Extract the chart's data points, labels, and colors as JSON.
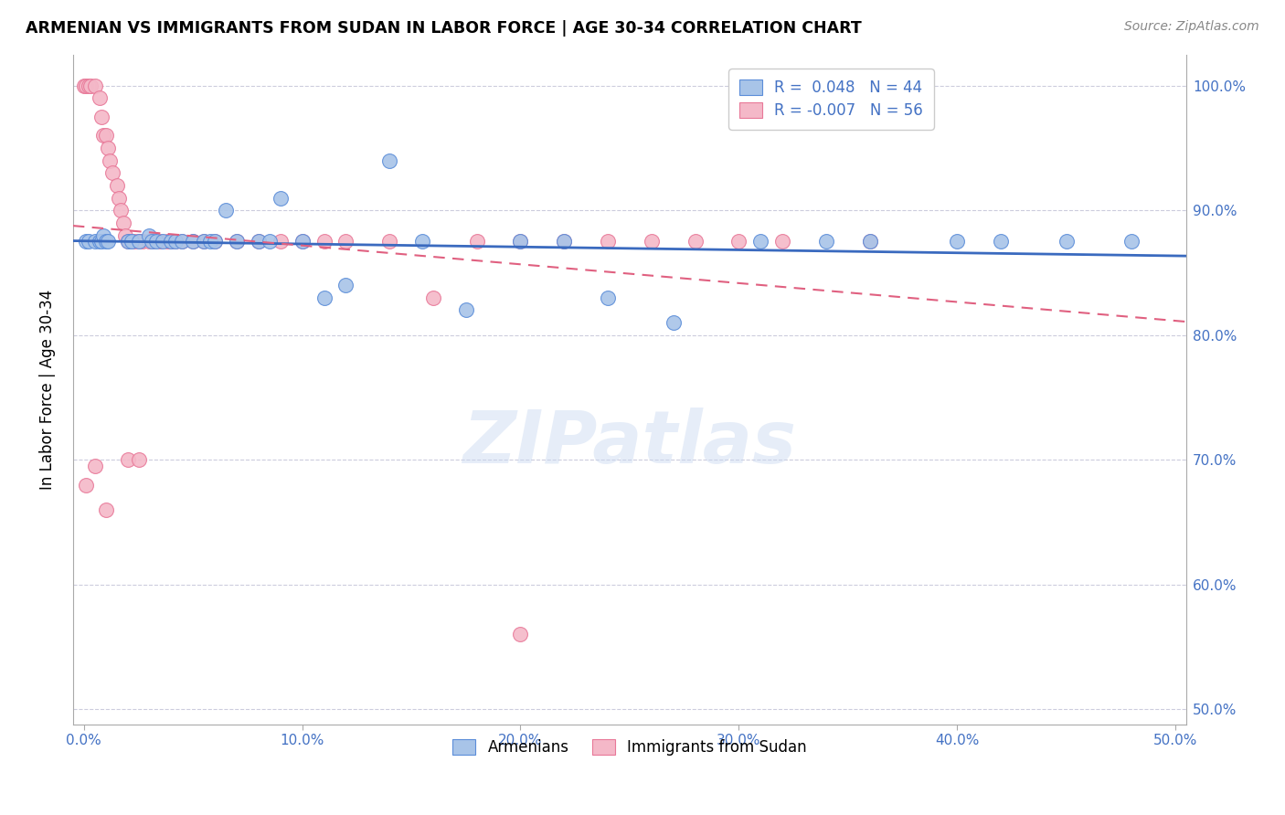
{
  "title": "ARMENIAN VS IMMIGRANTS FROM SUDAN IN LABOR FORCE | AGE 30-34 CORRELATION CHART",
  "source": "Source: ZipAtlas.com",
  "xlabel": "",
  "ylabel": "In Labor Force | Age 30-34",
  "xlim": [
    -0.005,
    0.505
  ],
  "ylim": [
    0.488,
    1.025
  ],
  "xticks": [
    0.0,
    0.1,
    0.2,
    0.3,
    0.4,
    0.5
  ],
  "xtick_labels": [
    "0.0%",
    "10.0%",
    "20.0%",
    "30.0%",
    "40.0%",
    "50.0%"
  ],
  "yticks_left": [
    0.5,
    0.6,
    0.7,
    0.8,
    0.9,
    1.0
  ],
  "ytick_labels_left": [
    "",
    "",
    "70.0%",
    "80.0%",
    "90.0%",
    "100.0%"
  ],
  "ytick_labels_right": [
    "50.0%",
    "60.0%",
    "70.0%",
    "80.0%",
    "90.0%",
    "100.0%"
  ],
  "blue_R": 0.048,
  "blue_N": 44,
  "pink_R": -0.007,
  "pink_N": 56,
  "blue_color": "#a8c4e8",
  "pink_color": "#f4b8c8",
  "blue_edge_color": "#5b8dd9",
  "pink_edge_color": "#e87898",
  "blue_line_color": "#3a6abf",
  "pink_line_color": "#e06080",
  "watermark": "ZIPatlas",
  "legend_label_blue": "Armenians",
  "legend_label_pink": "Immigrants from Sudan",
  "blue_x": [
    0.001,
    0.002,
    0.005,
    0.007,
    0.008,
    0.009,
    0.01,
    0.011,
    0.02,
    0.022,
    0.025,
    0.03,
    0.031,
    0.033,
    0.036,
    0.04,
    0.042,
    0.045,
    0.05,
    0.055,
    0.058,
    0.06,
    0.065,
    0.07,
    0.08,
    0.085,
    0.09,
    0.1,
    0.11,
    0.12,
    0.14,
    0.155,
    0.175,
    0.2,
    0.22,
    0.24,
    0.27,
    0.31,
    0.34,
    0.36,
    0.4,
    0.42,
    0.45,
    0.48
  ],
  "blue_y": [
    0.875,
    0.875,
    0.875,
    0.875,
    0.875,
    0.88,
    0.875,
    0.875,
    0.875,
    0.875,
    0.875,
    0.88,
    0.875,
    0.875,
    0.875,
    0.875,
    0.875,
    0.875,
    0.875,
    0.875,
    0.875,
    0.875,
    0.9,
    0.875,
    0.875,
    0.875,
    0.91,
    0.875,
    0.83,
    0.84,
    0.94,
    0.875,
    0.82,
    0.875,
    0.875,
    0.83,
    0.81,
    0.875,
    0.875,
    0.875,
    0.875,
    0.875,
    0.875,
    0.875
  ],
  "pink_x": [
    0.0,
    0.001,
    0.002,
    0.003,
    0.005,
    0.007,
    0.008,
    0.009,
    0.01,
    0.011,
    0.012,
    0.013,
    0.015,
    0.016,
    0.017,
    0.018,
    0.019,
    0.02,
    0.021,
    0.022,
    0.023,
    0.025,
    0.027,
    0.03,
    0.032,
    0.035,
    0.038,
    0.04,
    0.042,
    0.045,
    0.05,
    0.055,
    0.06,
    0.07,
    0.08,
    0.09,
    0.1,
    0.11,
    0.12,
    0.14,
    0.16,
    0.18,
    0.2,
    0.22,
    0.24,
    0.26,
    0.28,
    0.3,
    0.32,
    0.36,
    0.001,
    0.005,
    0.01,
    0.02,
    0.025,
    0.2
  ],
  "pink_y": [
    1.0,
    1.0,
    1.0,
    1.0,
    1.0,
    0.99,
    0.975,
    0.96,
    0.96,
    0.95,
    0.94,
    0.93,
    0.92,
    0.91,
    0.9,
    0.89,
    0.88,
    0.875,
    0.875,
    0.875,
    0.875,
    0.875,
    0.875,
    0.875,
    0.875,
    0.875,
    0.875,
    0.875,
    0.875,
    0.875,
    0.875,
    0.875,
    0.875,
    0.875,
    0.875,
    0.875,
    0.875,
    0.875,
    0.875,
    0.875,
    0.83,
    0.875,
    0.875,
    0.875,
    0.875,
    0.875,
    0.875,
    0.875,
    0.875,
    0.875,
    0.68,
    0.695,
    0.66,
    0.7,
    0.7,
    0.56
  ],
  "grid_color": "#ccccdd",
  "spine_color": "#aaaaaa"
}
